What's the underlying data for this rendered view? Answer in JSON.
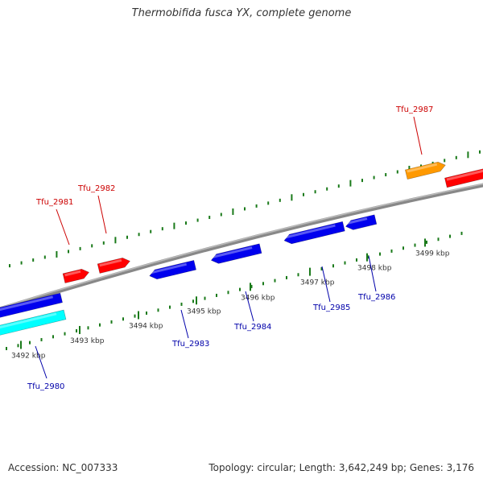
{
  "title": "Thermobifida fusca YX, complete genome",
  "footer": {
    "accession": "Accession: NC_007333",
    "topology": "Topology: circular; Length: 3,642,249 bp; Genes: 3,176"
  },
  "colors": {
    "backbone": "#888888",
    "tick": "#1a7a1a",
    "red": "#ff0000",
    "blue": "#0000ee",
    "cyan": "#00ffff",
    "orange": "#ff9900",
    "label_red": "#cc0000",
    "label_blue": "#0000aa",
    "tick_label": "#333333"
  },
  "ruler": {
    "unit": "kbp",
    "labels": [
      "3492 kbp",
      "3493 kbp",
      "3494 kbp",
      "3495 kbp",
      "3496 kbp",
      "3497 kbp",
      "3498 kbp",
      "3499 kbp"
    ]
  },
  "genes": [
    {
      "name": "Tfu_2980",
      "strand": "-",
      "color": "cyan"
    },
    {
      "name": "Tfu_2981",
      "strand": "+",
      "color": "red"
    },
    {
      "name": "Tfu_2982",
      "strand": "+",
      "color": "red"
    },
    {
      "name": "Tfu_2983",
      "strand": "-",
      "color": "blue"
    },
    {
      "name": "Tfu_2984",
      "strand": "-",
      "color": "blue"
    },
    {
      "name": "Tfu_2985",
      "strand": "-",
      "color": "blue"
    },
    {
      "name": "Tfu_2986",
      "strand": "-",
      "color": "blue"
    },
    {
      "name": "Tfu_2987",
      "strand": "+",
      "color": "orange"
    }
  ]
}
